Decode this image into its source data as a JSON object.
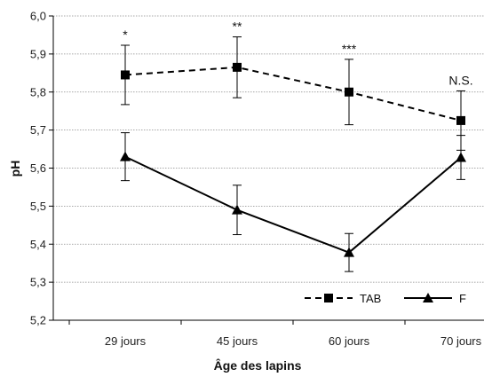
{
  "chart_data": {
    "type": "line",
    "title": "",
    "xlabel": "Âge des lapins",
    "ylabel": "pH",
    "categories": [
      "29 jours",
      "45 jours",
      "60 jours",
      "70 jours"
    ],
    "ylim": [
      5.2,
      6.0
    ],
    "yticks": [
      "5,2",
      "5,3",
      "5,4",
      "5,5",
      "5,6",
      "5,7",
      "5,8",
      "5,9",
      "6,0"
    ],
    "grid": true,
    "legend_position": "bottom-right",
    "series": [
      {
        "name": "TAB",
        "marker": "square",
        "line_style": "dashed",
        "color": "#000000",
        "values": [
          5.845,
          5.865,
          5.8,
          5.725
        ],
        "errors": [
          0.078,
          0.08,
          0.086,
          0.078
        ]
      },
      {
        "name": "F",
        "marker": "triangle",
        "line_style": "solid",
        "color": "#000000",
        "values": [
          5.63,
          5.49,
          5.378,
          5.628
        ],
        "errors": [
          0.063,
          0.065,
          0.05,
          0.058
        ]
      }
    ],
    "annotations": [
      "*",
      "**",
      "***",
      "N.S."
    ]
  }
}
